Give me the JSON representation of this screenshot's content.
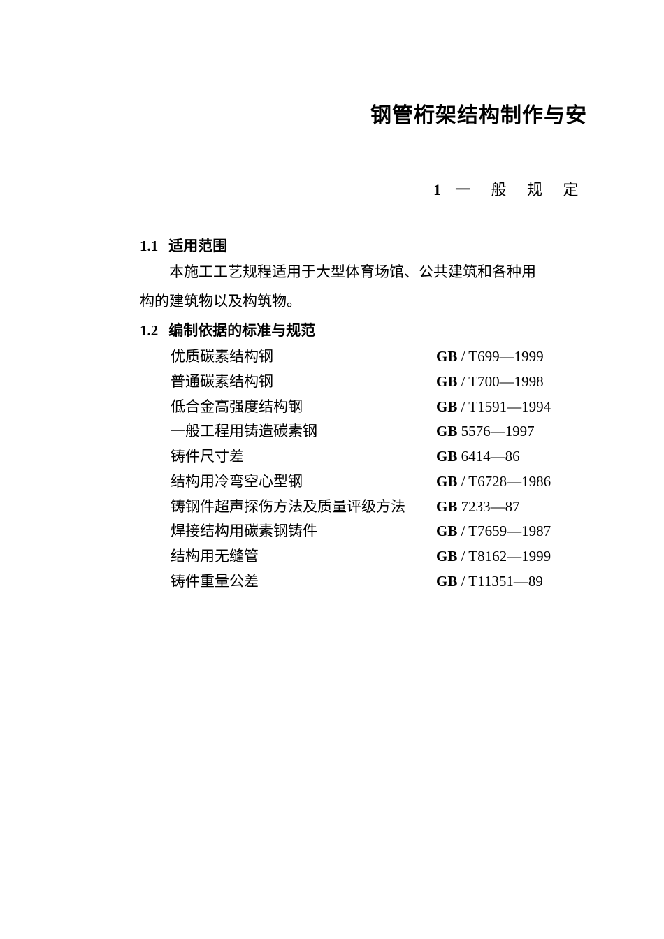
{
  "document": {
    "main_title": "钢管桁架结构制作与安",
    "section": {
      "number": "1",
      "title": "一 般 规 定"
    },
    "subsection_1_1": {
      "number": "1.1",
      "title": "适用范围",
      "text_line1": "本施工工艺规程适用于大型体育场馆、公共建筑和各种用",
      "text_line2": "构的建筑物以及构筑物。"
    },
    "subsection_1_2": {
      "number": "1.2",
      "title": "编制依据的标准与规范"
    },
    "standards": [
      {
        "name": "优质碳素结构钢",
        "gb": "GB",
        "sep": " / ",
        "code": "T699—1999"
      },
      {
        "name": "普通碳素结构钢",
        "gb": "GB",
        "sep": " / ",
        "code": "T700—1998"
      },
      {
        "name": "低合金高强度结构钢",
        "gb": "GB",
        "sep": " / ",
        "code": "T1591—1994"
      },
      {
        "name": "一般工程用铸造碳素钢",
        "gb": "GB",
        "sep": " ",
        "code": "5576—1997"
      },
      {
        "name": "铸件尺寸差",
        "gb": "GB",
        "sep": " ",
        "code": "6414—86"
      },
      {
        "name": "结构用冷弯空心型钢",
        "gb": "GB",
        "sep": " / ",
        "code": "T6728—1986"
      },
      {
        "name": "铸钢件超声探伤方法及质量评级方法",
        "gb": "GB",
        "sep": " ",
        "code": "7233—87"
      },
      {
        "name": "焊接结构用碳素钢铸件",
        "gb": "GB",
        "sep": " / ",
        "code": "T7659—1987"
      },
      {
        "name": "结构用无缝管",
        "gb": "GB",
        "sep": " / ",
        "code": "T8162—1999"
      },
      {
        "name": "铸件重量公差",
        "gb": "GB",
        "sep": " / ",
        "code": "T11351—89"
      }
    ],
    "colors": {
      "background": "#ffffff",
      "text": "#000000"
    },
    "typography": {
      "title_fontsize": 30,
      "section_fontsize": 22,
      "body_fontsize": 21,
      "font_family": "SimSun"
    }
  }
}
